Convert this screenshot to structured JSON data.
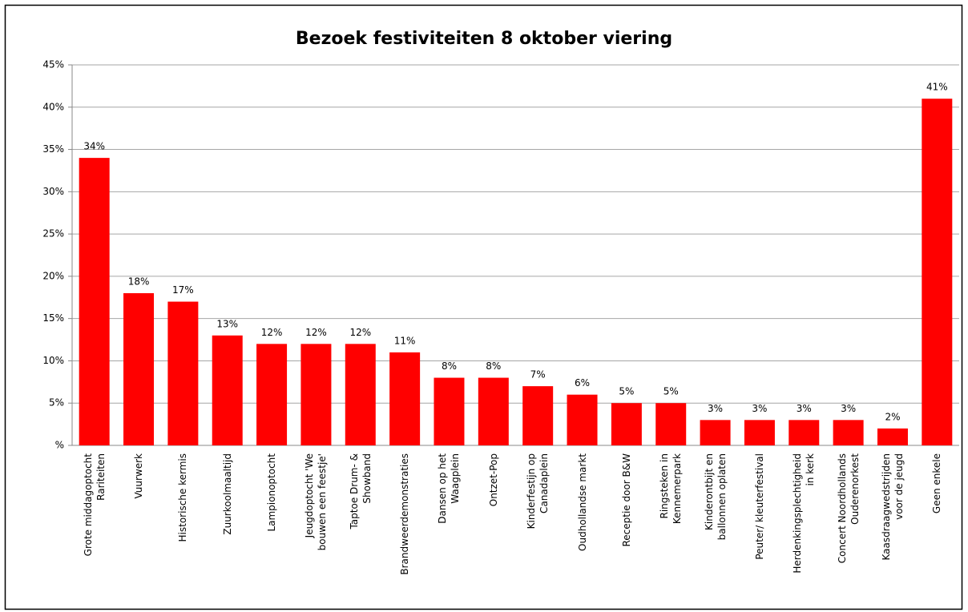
{
  "chart_data": {
    "type": "bar",
    "title": "Bezoek festiviteiten 8 oktober viering",
    "categories": [
      "Grote middagoptocht\nRariteiten",
      "Vuurwerk",
      "Historische kermis",
      "Zuurkoolmaaltijd",
      "Lampionoptocht",
      "Jeugdoptocht 'We\nbouwen een feestje'",
      "Taptoe Drum- &\nShowband",
      "Brandweerdemonstraties",
      "Dansen op het\nWaagplein",
      "Ontzet-Pop",
      "Kinderfestijn op\nCanadaplein",
      "Oudhollandse markt",
      "Receptie door B&W",
      "Ringsteken in\nKennemerpark",
      "Kinderontbijt en\nballonnen oplaten",
      "Peuter/ kleuterfestival",
      "Herdenkingsplechtigheid\nin kerk",
      "Concert Noordhollands\nOuderenorkest",
      "Kaasdraagwedstrijden\nvoor de jeugd",
      "Geen enkele"
    ],
    "values": [
      34,
      18,
      17,
      13,
      12,
      12,
      12,
      11,
      8,
      8,
      7,
      6,
      5,
      5,
      3,
      3,
      3,
      3,
      2,
      41
    ],
    "value_labels": [
      "34%",
      "18%",
      "17%",
      "13%",
      "12%",
      "12%",
      "12%",
      "11%",
      "8%",
      "8%",
      "7%",
      "6%",
      "5%",
      "5%",
      "3%",
      "3%",
      "3%",
      "3%",
      "2%",
      "41%"
    ],
    "color": "#ff0000",
    "ylim": [
      0,
      45
    ],
    "yticks": [
      {
        "value": 0,
        "label": "%"
      },
      {
        "value": 5,
        "label": "5%"
      },
      {
        "value": 10,
        "label": "10%"
      },
      {
        "value": 15,
        "label": "15%"
      },
      {
        "value": 20,
        "label": "20%"
      },
      {
        "value": 25,
        "label": "25%"
      },
      {
        "value": 30,
        "label": "30%"
      },
      {
        "value": 35,
        "label": "35%"
      },
      {
        "value": 40,
        "label": "40%"
      },
      {
        "value": 45,
        "label": "45%"
      }
    ],
    "grid": true
  }
}
